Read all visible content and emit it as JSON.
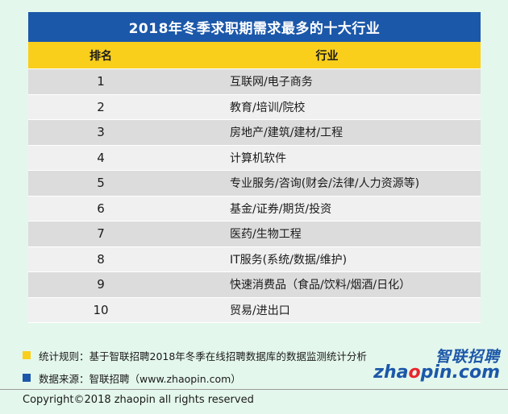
{
  "title": "2018年冬季求职期需求最多的十大行业",
  "headers": {
    "rank": "排名",
    "industry": "行业"
  },
  "rows": [
    {
      "rank": "1",
      "industry": "互联网/电子商务"
    },
    {
      "rank": "2",
      "industry": "教育/培训/院校"
    },
    {
      "rank": "3",
      "industry": "房地产/建筑/建材/工程"
    },
    {
      "rank": "4",
      "industry": "计算机软件"
    },
    {
      "rank": "5",
      "industry": "专业服务/咨询(财会/法律/人力资源等)"
    },
    {
      "rank": "6",
      "industry": "基金/证券/期货/投资"
    },
    {
      "rank": "7",
      "industry": "医药/生物工程"
    },
    {
      "rank": "8",
      "industry": "IT服务(系统/数据/维护)"
    },
    {
      "rank": "9",
      "industry": "快速消费品（食品/饮料/烟酒/日化）"
    },
    {
      "rank": "10",
      "industry": "贸易/进出口"
    }
  ],
  "notes": [
    {
      "text": "统计规则：基于智联招聘2018年冬季在线招聘数据库的数据监测统计分析",
      "color": "#f9cf1c"
    },
    {
      "text": "数据来源：智联招聘（www.zhaopin.com）",
      "color": "#1c58a9"
    }
  ],
  "logo": {
    "cn": "智联招聘",
    "en_pre": "zha",
    "en_o": "o",
    "en_post": "pin.com"
  },
  "copyright": "Copyright©2018 zhaopin all rights reserved",
  "colors": {
    "title_bg": "#1c58a9",
    "header_bg": "#f9cf1c",
    "page_bg": "#e4f7ec"
  }
}
